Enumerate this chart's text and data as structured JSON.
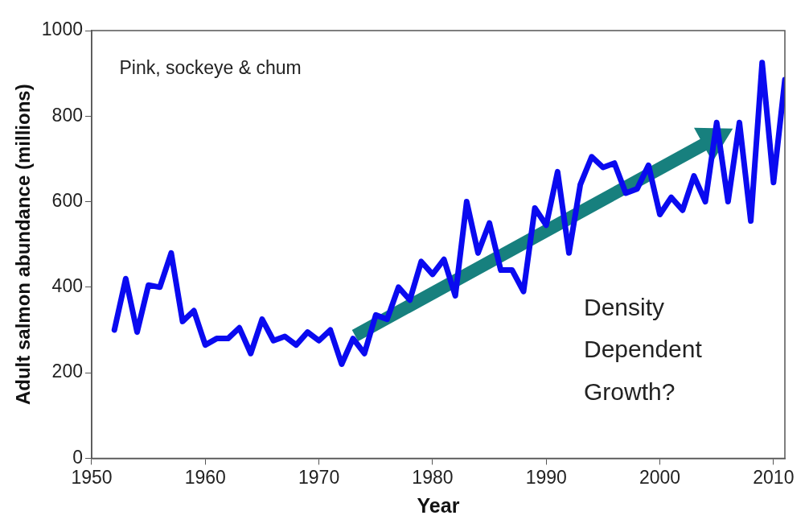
{
  "chart_data": {
    "type": "line",
    "xlabel": "Year",
    "ylabel": "Adult salmon abundance (millions)",
    "annotations": [
      "Pink, sockeye & chum",
      "Density Dependent Growth?"
    ],
    "x": [
      1952,
      1953,
      1954,
      1955,
      1956,
      1957,
      1958,
      1959,
      1960,
      1961,
      1962,
      1963,
      1964,
      1965,
      1966,
      1967,
      1968,
      1969,
      1970,
      1971,
      1972,
      1973,
      1974,
      1975,
      1976,
      1977,
      1978,
      1979,
      1980,
      1981,
      1982,
      1983,
      1984,
      1985,
      1986,
      1987,
      1988,
      1989,
      1990,
      1991,
      1992,
      1993,
      1994,
      1995,
      1996,
      1997,
      1998,
      1999,
      2000,
      2001,
      2002,
      2003,
      2004,
      2005,
      2006,
      2007,
      2008,
      2009,
      2010,
      2011
    ],
    "series": [
      {
        "color": "#0a0af0",
        "values": [
          300,
          420,
          295,
          405,
          400,
          480,
          320,
          345,
          265,
          280,
          280,
          305,
          245,
          325,
          275,
          285,
          265,
          295,
          275,
          300,
          220,
          280,
          245,
          335,
          325,
          400,
          370,
          460,
          430,
          465,
          380,
          600,
          480,
          550,
          440,
          440,
          390,
          585,
          545,
          670,
          480,
          640,
          705,
          680,
          690,
          620,
          630,
          685,
          570,
          610,
          580,
          660,
          600,
          785,
          600,
          785,
          555,
          925,
          645,
          885
        ]
      }
    ],
    "xlim": [
      1950,
      2011
    ],
    "xticks": [
      1950,
      1960,
      1970,
      1980,
      1990,
      2000,
      2010
    ],
    "ylim": [
      0,
      1000
    ],
    "yticks": [
      0,
      200,
      400,
      600,
      800,
      1000
    ],
    "grid": false,
    "legend": false,
    "marker": "none",
    "line_style": "solid"
  }
}
